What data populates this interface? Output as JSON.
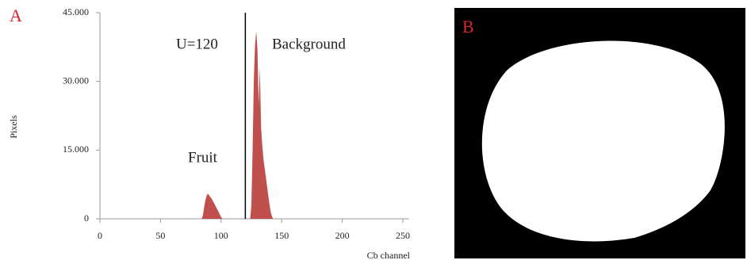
{
  "chart_data": {
    "type": "area",
    "panel_label": "A",
    "xlabel": "Cb channel",
    "ylabel": "Pixels",
    "x": [
      84,
      85,
      86,
      87,
      88,
      89,
      90,
      91,
      92,
      93,
      94,
      95,
      96,
      97,
      98,
      99,
      100,
      101,
      110,
      124,
      125,
      126,
      127,
      128,
      129,
      130,
      131,
      132,
      133,
      134,
      135,
      136,
      137,
      138,
      139,
      140,
      141,
      142,
      143
    ],
    "values": [
      0,
      800,
      2500,
      4000,
      5000,
      5500,
      5200,
      4800,
      4500,
      4000,
      3500,
      3000,
      2500,
      2000,
      1500,
      900,
      400,
      0,
      null,
      0,
      3000,
      15000,
      30000,
      38000,
      41000,
      37000,
      25000,
      33000,
      20000,
      16000,
      13000,
      11000,
      9000,
      7000,
      5000,
      3000,
      1500,
      500,
      0
    ],
    "color": "#c0504d",
    "threshold": 120,
    "annotations": [
      "U=120",
      "Background",
      "Fruit"
    ],
    "xlim": [
      0,
      255
    ],
    "xticks": [
      0,
      50,
      100,
      150,
      200,
      250
    ],
    "ylim": [
      0,
      45000
    ],
    "yticks": [
      0,
      {
        "value": 15000,
        "label": "15.000"
      },
      {
        "value": 30000,
        "label": "30.000"
      },
      {
        "value": 45000,
        "label": "45.000"
      }
    ]
  },
  "image_panel": {
    "label": "B"
  }
}
